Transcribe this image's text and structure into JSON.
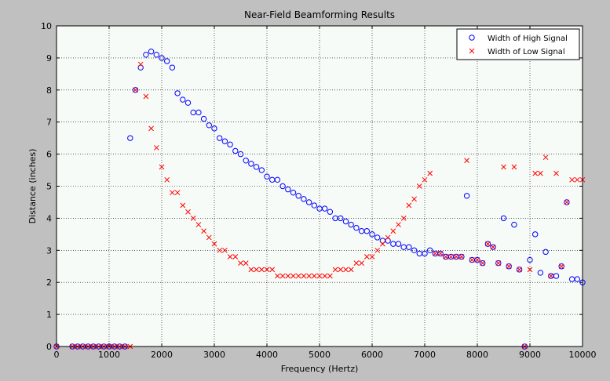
{
  "chart_data": {
    "type": "scatter",
    "title": "Near-Field Beamforming Results",
    "xlabel": "Frequency (Hertz)",
    "ylabel": "Distance (inches)",
    "xlim": [
      0,
      10000
    ],
    "ylim": [
      0,
      10
    ],
    "xticks": [
      "0",
      "1000",
      "2000",
      "3000",
      "4000",
      "5000",
      "6000",
      "7000",
      "8000",
      "9000",
      "10000"
    ],
    "yticks": [
      "0",
      "1",
      "2",
      "3",
      "4",
      "5",
      "6",
      "7",
      "8",
      "9",
      "10"
    ],
    "grid": true,
    "legend_position": "top-right",
    "series": [
      {
        "name": "Width of High Signal",
        "marker": "circle",
        "color": "#0000ff",
        "points": [
          [
            0,
            0
          ],
          [
            300,
            0
          ],
          [
            400,
            0
          ],
          [
            500,
            0
          ],
          [
            600,
            0
          ],
          [
            700,
            0
          ],
          [
            800,
            0
          ],
          [
            900,
            0
          ],
          [
            1000,
            0
          ],
          [
            1100,
            0
          ],
          [
            1200,
            0
          ],
          [
            1300,
            0
          ],
          [
            1400,
            6.5
          ],
          [
            1500,
            8.0
          ],
          [
            1600,
            8.7
          ],
          [
            1700,
            9.1
          ],
          [
            1800,
            9.2
          ],
          [
            1900,
            9.1
          ],
          [
            2000,
            9.0
          ],
          [
            2100,
            8.9
          ],
          [
            2200,
            8.7
          ],
          [
            2300,
            7.9
          ],
          [
            2400,
            7.7
          ],
          [
            2500,
            7.6
          ],
          [
            2600,
            7.3
          ],
          [
            2700,
            7.3
          ],
          [
            2800,
            7.1
          ],
          [
            2900,
            6.9
          ],
          [
            3000,
            6.8
          ],
          [
            3100,
            6.5
          ],
          [
            3200,
            6.4
          ],
          [
            3300,
            6.3
          ],
          [
            3400,
            6.1
          ],
          [
            3500,
            6.0
          ],
          [
            3600,
            5.8
          ],
          [
            3700,
            5.7
          ],
          [
            3800,
            5.6
          ],
          [
            3900,
            5.5
          ],
          [
            4000,
            5.3
          ],
          [
            4100,
            5.2
          ],
          [
            4200,
            5.2
          ],
          [
            4300,
            5.0
          ],
          [
            4400,
            4.9
          ],
          [
            4500,
            4.8
          ],
          [
            4600,
            4.7
          ],
          [
            4700,
            4.6
          ],
          [
            4800,
            4.5
          ],
          [
            4900,
            4.4
          ],
          [
            5000,
            4.3
          ],
          [
            5100,
            4.3
          ],
          [
            5200,
            4.2
          ],
          [
            5300,
            4.0
          ],
          [
            5400,
            4.0
          ],
          [
            5500,
            3.9
          ],
          [
            5600,
            3.8
          ],
          [
            5700,
            3.7
          ],
          [
            5800,
            3.6
          ],
          [
            5900,
            3.6
          ],
          [
            6000,
            3.5
          ],
          [
            6100,
            3.4
          ],
          [
            6200,
            3.3
          ],
          [
            6300,
            3.3
          ],
          [
            6400,
            3.2
          ],
          [
            6500,
            3.2
          ],
          [
            6600,
            3.1
          ],
          [
            6700,
            3.1
          ],
          [
            6800,
            3.0
          ],
          [
            6900,
            2.9
          ],
          [
            7000,
            2.9
          ],
          [
            7100,
            3.0
          ],
          [
            7200,
            2.9
          ],
          [
            7300,
            2.9
          ],
          [
            7400,
            2.8
          ],
          [
            7500,
            2.8
          ],
          [
            7600,
            2.8
          ],
          [
            7700,
            2.8
          ],
          [
            7800,
            4.7
          ],
          [
            7900,
            2.7
          ],
          [
            8000,
            2.7
          ],
          [
            8100,
            2.6
          ],
          [
            8200,
            3.2
          ],
          [
            8300,
            3.1
          ],
          [
            8400,
            2.6
          ],
          [
            8500,
            4.0
          ],
          [
            8600,
            2.5
          ],
          [
            8700,
            3.8
          ],
          [
            8800,
            2.4
          ],
          [
            8900,
            0
          ],
          [
            9000,
            2.7
          ],
          [
            9100,
            3.5
          ],
          [
            9200,
            2.3
          ],
          [
            9300,
            2.95
          ],
          [
            9400,
            2.2
          ],
          [
            9500,
            2.2
          ],
          [
            9600,
            2.5
          ],
          [
            9700,
            4.5
          ],
          [
            9800,
            2.1
          ],
          [
            9900,
            2.1
          ],
          [
            10000,
            2.0
          ]
        ]
      },
      {
        "name": "Width of Low Signal",
        "marker": "x",
        "color": "#ff0000",
        "points": [
          [
            0,
            0
          ],
          [
            300,
            0
          ],
          [
            400,
            0
          ],
          [
            500,
            0
          ],
          [
            600,
            0
          ],
          [
            700,
            0
          ],
          [
            800,
            0
          ],
          [
            900,
            0
          ],
          [
            1000,
            0
          ],
          [
            1100,
            0
          ],
          [
            1200,
            0
          ],
          [
            1300,
            0
          ],
          [
            1400,
            0
          ],
          [
            1500,
            8.0
          ],
          [
            1600,
            8.8
          ],
          [
            1700,
            7.8
          ],
          [
            1800,
            6.8
          ],
          [
            1900,
            6.2
          ],
          [
            2000,
            5.6
          ],
          [
            2100,
            5.2
          ],
          [
            2200,
            4.8
          ],
          [
            2300,
            4.8
          ],
          [
            2400,
            4.4
          ],
          [
            2500,
            4.2
          ],
          [
            2600,
            4.0
          ],
          [
            2700,
            3.8
          ],
          [
            2800,
            3.6
          ],
          [
            2900,
            3.4
          ],
          [
            3000,
            3.2
          ],
          [
            3100,
            3.0
          ],
          [
            3200,
            3.0
          ],
          [
            3300,
            2.8
          ],
          [
            3400,
            2.8
          ],
          [
            3500,
            2.6
          ],
          [
            3600,
            2.6
          ],
          [
            3700,
            2.4
          ],
          [
            3800,
            2.4
          ],
          [
            3900,
            2.4
          ],
          [
            4000,
            2.4
          ],
          [
            4100,
            2.4
          ],
          [
            4200,
            2.2
          ],
          [
            4300,
            2.2
          ],
          [
            4400,
            2.2
          ],
          [
            4500,
            2.2
          ],
          [
            4600,
            2.2
          ],
          [
            4700,
            2.2
          ],
          [
            4800,
            2.2
          ],
          [
            4900,
            2.2
          ],
          [
            5000,
            2.2
          ],
          [
            5100,
            2.2
          ],
          [
            5200,
            2.2
          ],
          [
            5300,
            2.4
          ],
          [
            5400,
            2.4
          ],
          [
            5500,
            2.4
          ],
          [
            5600,
            2.4
          ],
          [
            5700,
            2.6
          ],
          [
            5800,
            2.6
          ],
          [
            5900,
            2.8
          ],
          [
            6000,
            2.8
          ],
          [
            6100,
            3.0
          ],
          [
            6200,
            3.2
          ],
          [
            6300,
            3.4
          ],
          [
            6400,
            3.6
          ],
          [
            6500,
            3.8
          ],
          [
            6600,
            4.0
          ],
          [
            6700,
            4.4
          ],
          [
            6800,
            4.6
          ],
          [
            6900,
            5.0
          ],
          [
            7000,
            5.2
          ],
          [
            7100,
            5.4
          ],
          [
            7200,
            2.9
          ],
          [
            7300,
            2.9
          ],
          [
            7400,
            2.8
          ],
          [
            7500,
            2.8
          ],
          [
            7600,
            2.8
          ],
          [
            7700,
            2.8
          ],
          [
            7800,
            5.8
          ],
          [
            7900,
            2.7
          ],
          [
            8000,
            2.7
          ],
          [
            8100,
            2.6
          ],
          [
            8200,
            3.2
          ],
          [
            8300,
            3.1
          ],
          [
            8400,
            2.6
          ],
          [
            8500,
            5.6
          ],
          [
            8600,
            2.5
          ],
          [
            8700,
            5.6
          ],
          [
            8800,
            2.4
          ],
          [
            8900,
            0
          ],
          [
            9000,
            2.4
          ],
          [
            9100,
            5.4
          ],
          [
            9200,
            5.4
          ],
          [
            9300,
            5.9
          ],
          [
            9400,
            2.2
          ],
          [
            9500,
            5.4
          ],
          [
            9600,
            2.5
          ],
          [
            9700,
            4.5
          ],
          [
            9800,
            5.2
          ],
          [
            9900,
            5.2
          ],
          [
            10000,
            5.2
          ]
        ]
      }
    ]
  }
}
